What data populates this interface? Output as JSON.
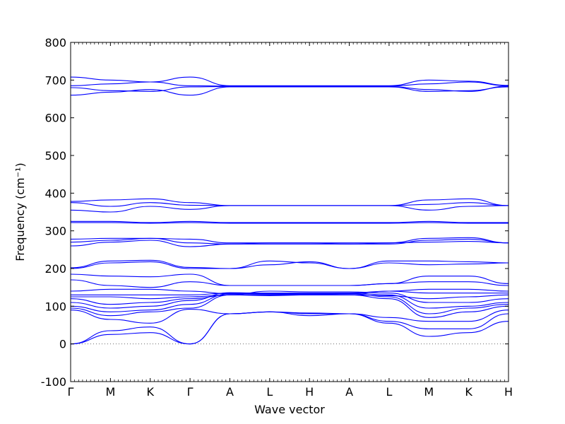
{
  "chart_data": {
    "type": "line",
    "title": "",
    "xlabel": "Wave vector",
    "ylabel": "Frequency (cm⁻¹)",
    "ylim": [
      -100,
      800
    ],
    "y_ticks": [
      -100,
      0,
      100,
      200,
      300,
      400,
      500,
      600,
      700,
      800
    ],
    "x_ticks": [
      "Γ",
      "M",
      "K",
      "Γ",
      "A",
      "L",
      "H",
      "A",
      "L",
      "M",
      "K",
      "H"
    ],
    "path_segments": [
      "Γ-M",
      "M-K",
      "K-Γ",
      "Γ-A",
      "A-L",
      "L-H",
      "H-A",
      "A-L",
      "L-M",
      "M-K",
      "K-H"
    ],
    "grid": false,
    "zero_line": {
      "y": 0,
      "style": "dotted"
    },
    "series_color": "#0000ff",
    "series": [
      {
        "values": [
          0,
          25,
          30,
          0,
          80,
          85,
          75,
          80,
          55,
          20,
          30,
          60
        ]
      },
      {
        "values": [
          0,
          35,
          45,
          0,
          80,
          85,
          80,
          80,
          60,
          40,
          40,
          80
        ]
      },
      {
        "values": [
          90,
          65,
          55,
          92,
          80,
          85,
          82,
          80,
          70,
          60,
          60,
          90
        ]
      },
      {
        "values": [
          95,
          75,
          85,
          95,
          130,
          130,
          130,
          130,
          120,
          70,
          85,
          100
        ]
      },
      {
        "values": [
          100,
          85,
          90,
          105,
          133,
          132,
          131,
          133,
          125,
          80,
          95,
          105
        ]
      },
      {
        "values": [
          110,
          95,
          100,
          115,
          136,
          134,
          133,
          135,
          130,
          95,
          100,
          110
        ]
      },
      {
        "values": [
          120,
          105,
          110,
          120,
          130,
          140,
          138,
          138,
          135,
          110,
          110,
          120
        ]
      },
      {
        "values": [
          125,
          125,
          120,
          125,
          130,
          128,
          130,
          130,
          128,
          120,
          125,
          130
        ]
      },
      {
        "values": [
          130,
          130,
          130,
          130,
          135,
          135,
          135,
          135,
          140,
          135,
          135,
          135
        ]
      },
      {
        "values": [
          140,
          145,
          145,
          140,
          133,
          133,
          133,
          133,
          140,
          145,
          145,
          140
        ]
      },
      {
        "values": [
          170,
          155,
          150,
          165,
          155,
          155,
          155,
          155,
          160,
          165,
          165,
          155
        ]
      },
      {
        "values": [
          185,
          180,
          178,
          185,
          155,
          155,
          155,
          155,
          160,
          180,
          180,
          160
        ]
      },
      {
        "values": [
          200,
          215,
          218,
          200,
          200,
          220,
          215,
          200,
          220,
          220,
          218,
          215
        ]
      },
      {
        "values": [
          202,
          220,
          222,
          203,
          200,
          210,
          218,
          200,
          215,
          210,
          212,
          215
        ]
      },
      {
        "values": [
          260,
          270,
          275,
          258,
          265,
          265,
          265,
          265,
          265,
          275,
          278,
          268
        ]
      },
      {
        "values": [
          270,
          275,
          280,
          268,
          265,
          268,
          268,
          265,
          268,
          280,
          282,
          268
        ]
      },
      {
        "values": [
          278,
          280,
          280,
          278,
          268,
          268,
          268,
          268,
          268,
          270,
          272,
          268
        ]
      },
      {
        "values": [
          322,
          322,
          320,
          322,
          320,
          320,
          320,
          320,
          320,
          322,
          320,
          320
        ]
      },
      {
        "values": [
          325,
          325,
          322,
          325,
          322,
          322,
          322,
          322,
          322,
          325,
          322,
          322
        ]
      },
      {
        "values": [
          355,
          350,
          365,
          357,
          367,
          367,
          367,
          367,
          367,
          355,
          365,
          367
        ]
      },
      {
        "values": [
          375,
          365,
          375,
          368,
          367,
          367,
          367,
          367,
          367,
          370,
          375,
          367
        ]
      },
      {
        "values": [
          378,
          382,
          385,
          375,
          367,
          367,
          367,
          367,
          367,
          382,
          385,
          367
        ]
      },
      {
        "values": [
          660,
          668,
          675,
          660,
          682,
          682,
          682,
          682,
          682,
          670,
          672,
          682
        ]
      },
      {
        "values": [
          680,
          672,
          670,
          682,
          683,
          683,
          683,
          683,
          683,
          675,
          670,
          684
        ]
      },
      {
        "values": [
          685,
          690,
          695,
          685,
          684,
          684,
          684,
          684,
          684,
          690,
          695,
          685
        ]
      },
      {
        "values": [
          708,
          700,
          695,
          708,
          685,
          685,
          685,
          685,
          685,
          700,
          697,
          686
        ]
      }
    ]
  }
}
